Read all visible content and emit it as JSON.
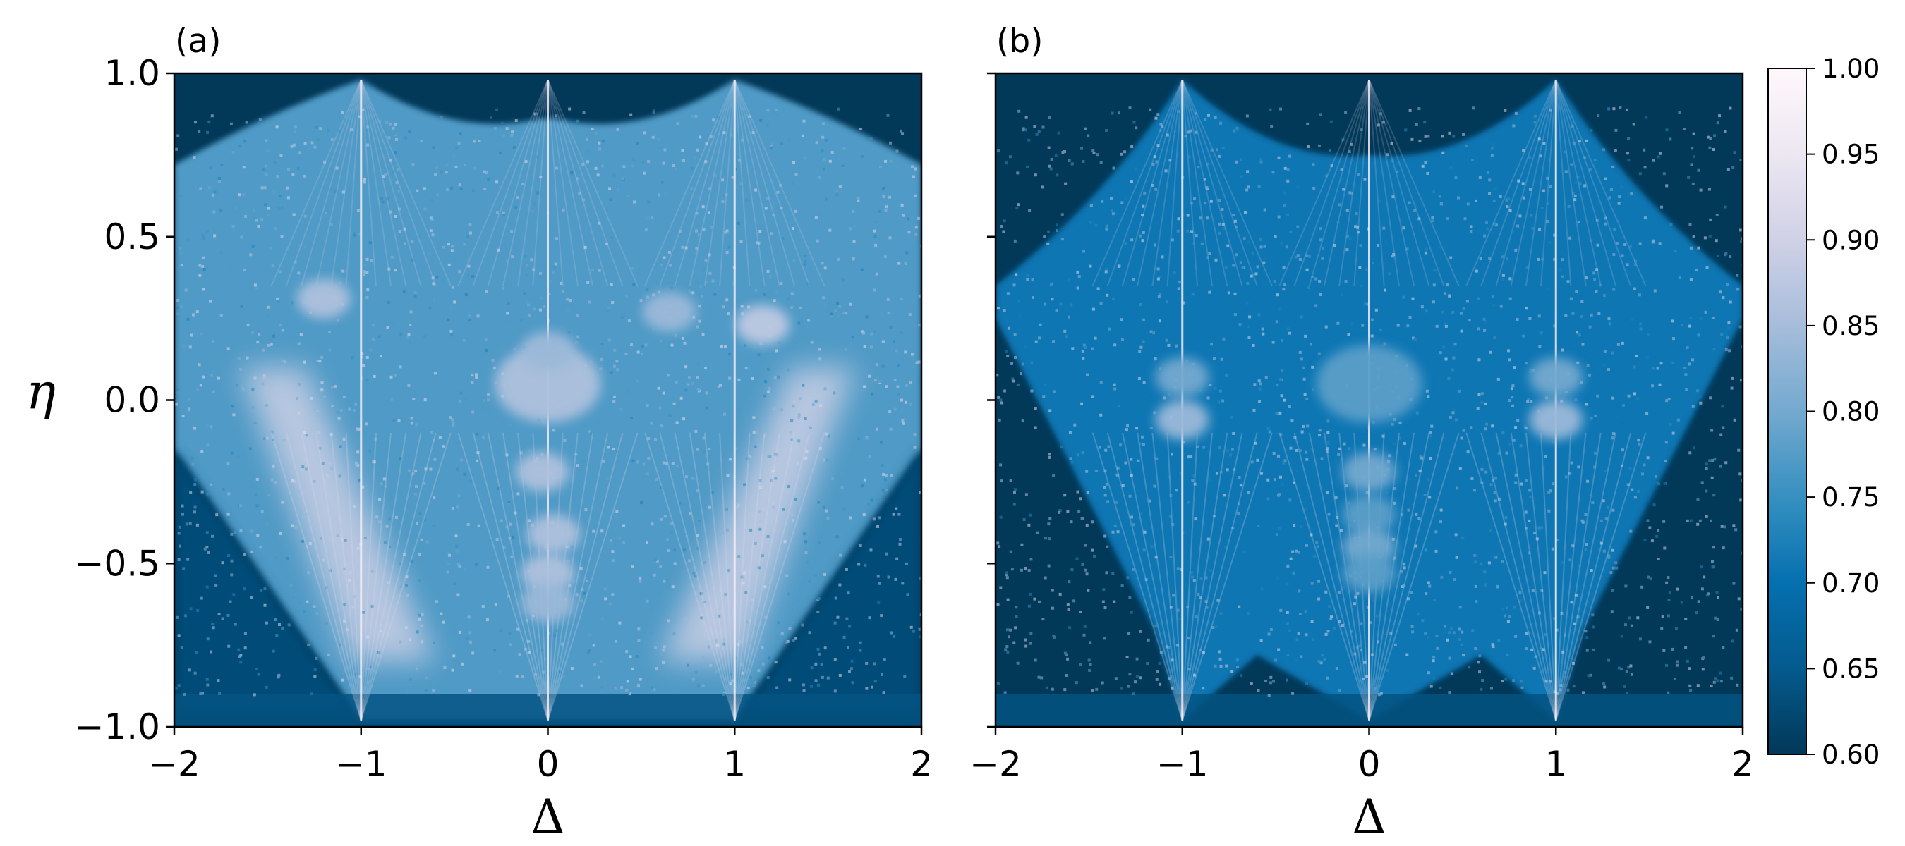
{
  "chart_data": [
    {
      "type": "heatmap",
      "panel_label": "(a)",
      "xlabel": "Δ",
      "ylabel": "η",
      "xlim": [
        -2,
        2
      ],
      "ylim": [
        -1,
        1
      ],
      "x_ticks": [
        -2,
        -1,
        0,
        1,
        2
      ],
      "x_tick_labels": [
        "−2",
        "−1",
        "0",
        "1",
        "2"
      ],
      "y_ticks": [
        1.0,
        0.5,
        0.0,
        -0.5,
        -1.0
      ],
      "y_tick_labels": [
        "1.0",
        "0.5",
        "0.0",
        "−0.5",
        "−1.0"
      ],
      "value_range": [
        0.6,
        1.0
      ],
      "features": {
        "spines_at_delta": [
          -1,
          0,
          1
        ],
        "spine_top_eta": 0.98,
        "spine_bottom_eta": -0.98,
        "bright_wedges_toward_bottom_outer_edges": true,
        "blobs": [
          {
            "x": 0.0,
            "y": 0.05,
            "value": 0.86
          },
          {
            "x": 0.65,
            "y": 0.27,
            "value": 0.84
          },
          {
            "x": 1.15,
            "y": 0.23,
            "value": 0.88
          },
          {
            "x": -1.2,
            "y": 0.31,
            "value": 0.86
          },
          {
            "x": -0.03,
            "y": -0.22,
            "value": 0.86
          },
          {
            "x": 0.03,
            "y": -0.41,
            "value": 0.86
          },
          {
            "x": 0.0,
            "y": -0.53,
            "value": 0.86
          },
          {
            "x": 0.0,
            "y": -0.62,
            "value": 0.84
          },
          {
            "x": 0.0,
            "y": 0.15,
            "value": 0.84
          }
        ]
      }
    },
    {
      "type": "heatmap",
      "panel_label": "(b)",
      "xlabel": "Δ",
      "ylabel": "η",
      "xlim": [
        -2,
        2
      ],
      "ylim": [
        -1,
        1
      ],
      "x_ticks": [
        -2,
        -1,
        0,
        1,
        2
      ],
      "x_tick_labels": [
        "−2",
        "−1",
        "0",
        "1",
        "2"
      ],
      "y_ticks": [
        1.0,
        0.5,
        0.0,
        -0.5,
        -1.0
      ],
      "y_tick_labels": [],
      "value_range": [
        0.6,
        1.0
      ],
      "features": {
        "spines_at_delta": [
          -1,
          0,
          1
        ],
        "spine_top_eta": 0.98,
        "spine_bottom_eta": -0.98,
        "bright_wedges_toward_bottom_outer_edges": false,
        "blobs": [
          {
            "x": -1.0,
            "y": 0.07,
            "value": 0.8
          },
          {
            "x": -1.0,
            "y": -0.06,
            "value": 0.84
          },
          {
            "x": 1.0,
            "y": 0.07,
            "value": 0.8
          },
          {
            "x": 1.0,
            "y": -0.06,
            "value": 0.84
          },
          {
            "x": 0.0,
            "y": 0.05,
            "value": 0.78
          },
          {
            "x": 0.0,
            "y": -0.22,
            "value": 0.8
          },
          {
            "x": 0.0,
            "y": -0.35,
            "value": 0.78
          },
          {
            "x": 0.0,
            "y": -0.45,
            "value": 0.8
          },
          {
            "x": 0.0,
            "y": -0.53,
            "value": 0.78
          }
        ]
      }
    }
  ],
  "colorbar": {
    "min": 0.6,
    "max": 1.0,
    "ticks": [
      1.0,
      0.95,
      0.9,
      0.85,
      0.8,
      0.75,
      0.7,
      0.65,
      0.6
    ],
    "tick_labels": [
      "1.00",
      "0.95",
      "0.90",
      "0.85",
      "0.80",
      "0.75",
      "0.70",
      "0.65",
      "0.60"
    ],
    "colormap": [
      "#023858",
      "#045a8d",
      "#0570b0",
      "#3690c0",
      "#74a9cf",
      "#a6bddb",
      "#d0d1e6",
      "#ece7f2",
      "#fff7fb"
    ]
  }
}
